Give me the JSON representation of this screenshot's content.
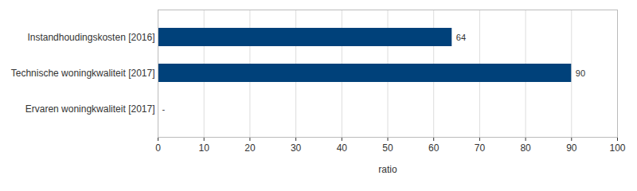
{
  "chart_data": {
    "type": "bar",
    "orientation": "horizontal",
    "categories": [
      "Instandhoudingskosten [2016]",
      "Technische woningkwaliteit [2017]",
      "Ervaren woningkwaliteit [2017]"
    ],
    "values": [
      64,
      90,
      null
    ],
    "value_labels": [
      "64",
      "90",
      "-"
    ],
    "data_labels": true,
    "color": "#00417a",
    "x_label": "ratio",
    "xlim": [
      0,
      100
    ],
    "xticks": [
      0,
      10,
      20,
      30,
      40,
      50,
      60,
      70,
      80,
      90,
      100
    ],
    "grid": true
  }
}
